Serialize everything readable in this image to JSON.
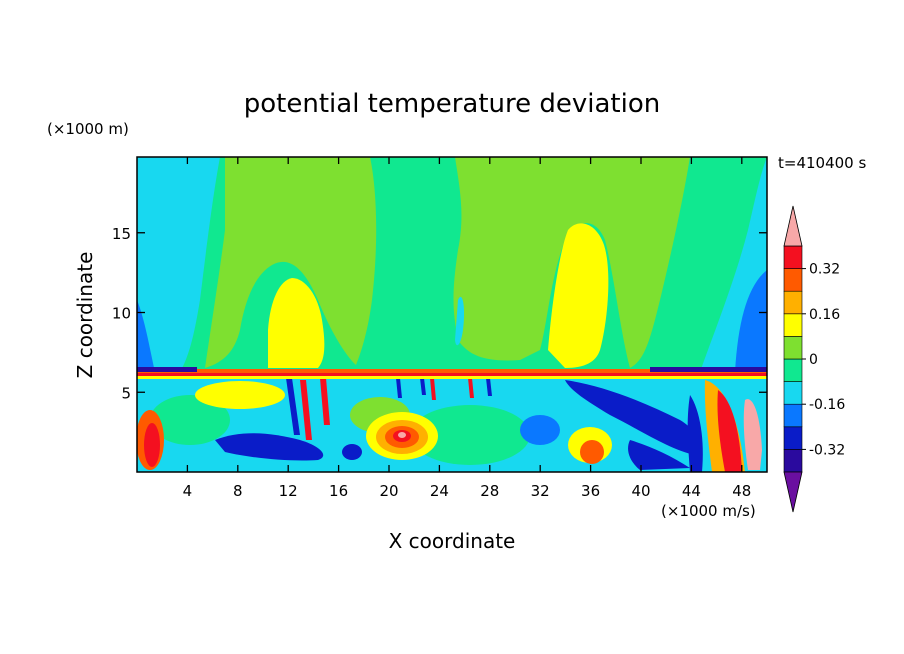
{
  "chart_data": {
    "type": "heatmap",
    "title": "potential temperature deviation",
    "time_label": "t=410400 s",
    "xlabel": "X coordinate",
    "ylabel": "Z coordinate",
    "x_unit": "(×1000 m/s)",
    "y_unit": "(×1000 m)",
    "xlim": [
      0,
      50
    ],
    "ylim": [
      0,
      19.75
    ],
    "x_ticks": [
      4,
      8,
      12,
      16,
      20,
      24,
      28,
      32,
      36,
      40,
      44,
      48
    ],
    "y_ticks": [
      5,
      10,
      15
    ],
    "colorbar": {
      "levels": [
        -0.4,
        -0.32,
        -0.24,
        -0.16,
        -0.08,
        0,
        0.08,
        0.16,
        0.24,
        0.32,
        0.4
      ],
      "colors": [
        "#6a0fa0",
        "#2a0a9e",
        "#0a1cc8",
        "#0a78ff",
        "#18d8f0",
        "#10e890",
        "#7ee030",
        "#ffff00",
        "#ffb000",
        "#ff5a00",
        "#f41020",
        "#f8a8a8"
      ],
      "tick_labels": [
        "-0.32",
        "-0.16",
        "0",
        "0.16",
        "0.32"
      ],
      "tick_values": [
        -0.32,
        -0.16,
        0,
        0.16,
        0.32
      ]
    }
  }
}
